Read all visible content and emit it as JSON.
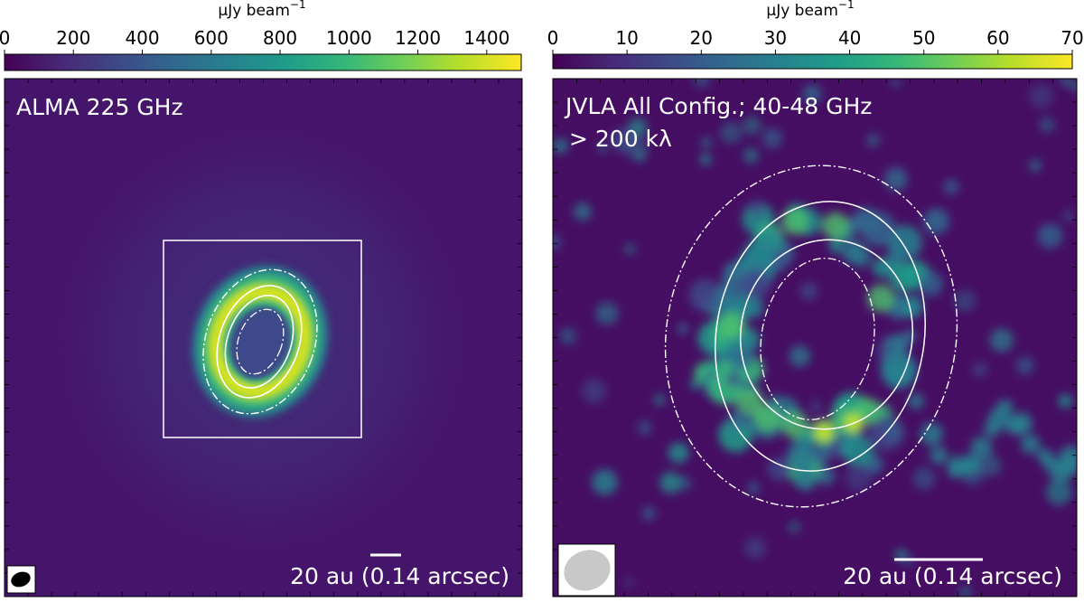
{
  "colors": {
    "viridis": [
      "#440154",
      "#482878",
      "#3e4989",
      "#31688e",
      "#26828e",
      "#1f9e89",
      "#35b779",
      "#6ece58",
      "#b5de2b",
      "#fde725"
    ],
    "background_left": "#45146b",
    "background_right": "#460e63",
    "contour": "#ffffff",
    "beam_left": "#000000",
    "beam_right": "#c8c8c8"
  },
  "panels": [
    {
      "id": "alma",
      "colorbar": {
        "unit_prefix": "μJy beam",
        "unit_sup": "−1",
        "ticks": [
          "0",
          "200",
          "400",
          "600",
          "800",
          "1000",
          "1200",
          "1400"
        ],
        "tick_values": [
          0,
          200,
          400,
          600,
          800,
          1000,
          1200,
          1400
        ],
        "range": [
          0,
          1500
        ]
      },
      "label_line1": "ALMA 225 GHz",
      "label_line2": "",
      "scalebar_text": "20 au (0.14 arcsec)",
      "beam_icon": "filled-ellipse"
    },
    {
      "id": "jvla",
      "colorbar": {
        "unit_prefix": "μJy beam",
        "unit_sup": "−1",
        "ticks": [
          "0",
          "10",
          "20",
          "30",
          "40",
          "50",
          "60",
          "70"
        ],
        "tick_values": [
          0,
          10,
          20,
          30,
          40,
          50,
          60,
          70
        ],
        "range": [
          0,
          70
        ]
      },
      "label_line1": "JVLA All Config.; 40-48 GHz",
      "label_line2": "> 200 kλ",
      "scalebar_text": "20 au (0.14 arcsec)",
      "beam_icon": "filled-ellipse"
    }
  ]
}
